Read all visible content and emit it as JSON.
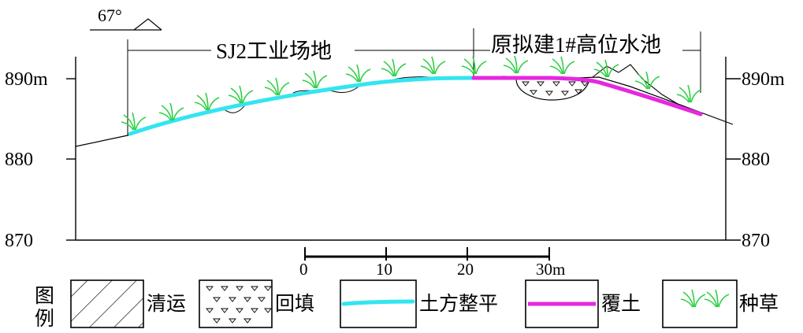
{
  "angle_label": "67°",
  "zones": {
    "left_label": "SJ2工业场地",
    "right_label": "原拟建1#高位水池"
  },
  "elevation_axis": {
    "left_labels": [
      "890m",
      "880",
      "870"
    ],
    "right_labels": [
      "890m",
      "880",
      "870"
    ]
  },
  "scale_bar": {
    "ticks": [
      "0",
      "10",
      "20",
      "30m"
    ]
  },
  "legend": {
    "title_top": "图",
    "title_bottom": "例",
    "items": [
      {
        "key": "clear",
        "label": "清运"
      },
      {
        "key": "backfill",
        "label": "回填"
      },
      {
        "key": "leveling",
        "label": "土方整平",
        "color": "#33e5f0"
      },
      {
        "key": "cover",
        "label": "覆土",
        "color": "#e628de"
      },
      {
        "key": "grass",
        "label": "种草",
        "color": "#2fcf45"
      }
    ]
  },
  "colors": {
    "leveling": "#33e5f0",
    "cover": "#e628de",
    "grass": "#2fcf45",
    "line": "#000000"
  }
}
